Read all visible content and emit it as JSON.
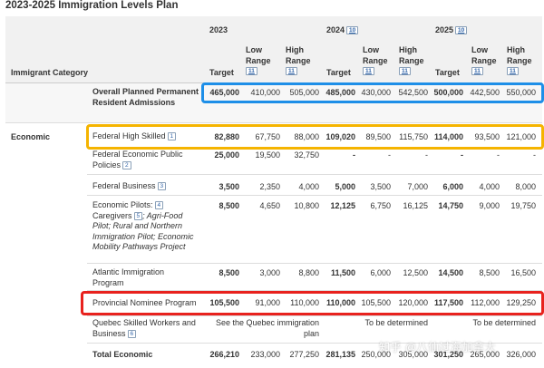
{
  "title": "2023-2025 Immigration Levels Plan",
  "header": {
    "category_label": "Immigrant Category",
    "years": [
      {
        "year": "2023",
        "fn": "",
        "target": "Target",
        "low": "Low Range",
        "low_fn": "11",
        "high": "High Range",
        "high_fn": "11"
      },
      {
        "year": "2024",
        "fn": "10",
        "target": "Target",
        "low": "Low Range",
        "low_fn": "11",
        "high": "High Range",
        "high_fn": "11"
      },
      {
        "year": "2025",
        "fn": "10",
        "target": "Target",
        "low": "Low Range",
        "low_fn": "11",
        "high": "High Range",
        "high_fn": "11"
      }
    ]
  },
  "overall": {
    "label": "Overall Planned Permanent Resident Admissions",
    "values": [
      "465,000",
      "410,000",
      "505,000",
      "485,000",
      "430,000",
      "542,500",
      "500,000",
      "442,500",
      "550,000"
    ]
  },
  "economic": {
    "category": "Economic",
    "rows": [
      {
        "label": "Federal High Skilled",
        "fn": "1",
        "values": [
          "82,880",
          "67,750",
          "88,000",
          "109,020",
          "89,500",
          "115,750",
          "114,000",
          "93,500",
          "121,000"
        ]
      },
      {
        "label": "Federal Economic Public Policies",
        "fn": "2",
        "values": [
          "25,000",
          "19,500",
          "32,750",
          "-",
          "-",
          "-",
          "-",
          "-",
          "-"
        ]
      },
      {
        "label": "Federal Business",
        "fn": "3",
        "values": [
          "3,500",
          "2,350",
          "4,000",
          "5,000",
          "3,500",
          "7,000",
          "6,000",
          "4,000",
          "8,000"
        ]
      },
      {
        "label_a": "Economic Pilots:",
        "fn_a": "4",
        "label_b": "Caregivers",
        "fn_b": "5",
        "label_c": "; Agri-Food Pilot; Rural and Northern Immigration Pilot; Economic Mobility Pathways Project",
        "values": [
          "8,500",
          "4,650",
          "10,800",
          "12,125",
          "6,750",
          "16,125",
          "14,750",
          "9,000",
          "19,750"
        ]
      },
      {
        "label": "Atlantic Immigration Program",
        "fn": "",
        "values": [
          "8,500",
          "3,000",
          "8,800",
          "11,500",
          "6,000",
          "12,500",
          "14,500",
          "8,500",
          "16,500"
        ]
      },
      {
        "label": "Provincial Nominee Program",
        "fn": "",
        "values": [
          "105,500",
          "91,000",
          "110,000",
          "110,000",
          "105,500",
          "120,000",
          "117,500",
          "112,000",
          "129,250"
        ]
      },
      {
        "label": "Quebec Skilled Workers and Business",
        "fn": "6",
        "notes": [
          "See the Quebec immigration plan",
          "To be determined",
          "To be determined"
        ]
      }
    ],
    "total": {
      "label": "Total Economic",
      "values": [
        "266,210",
        "233,000",
        "277,250",
        "281,135",
        "250,000",
        "305,000",
        "301,250",
        "265,000",
        "326,000"
      ]
    }
  },
  "watermark": "知乎 @八仙过海加拿大",
  "colors": {
    "overall_box": "#1e8fe8",
    "high_skilled_box": "#f5b400",
    "pnp_box": "#e8221e",
    "header_bg": "#f1f1f1",
    "category_row_bg": "#f7f7f7"
  }
}
